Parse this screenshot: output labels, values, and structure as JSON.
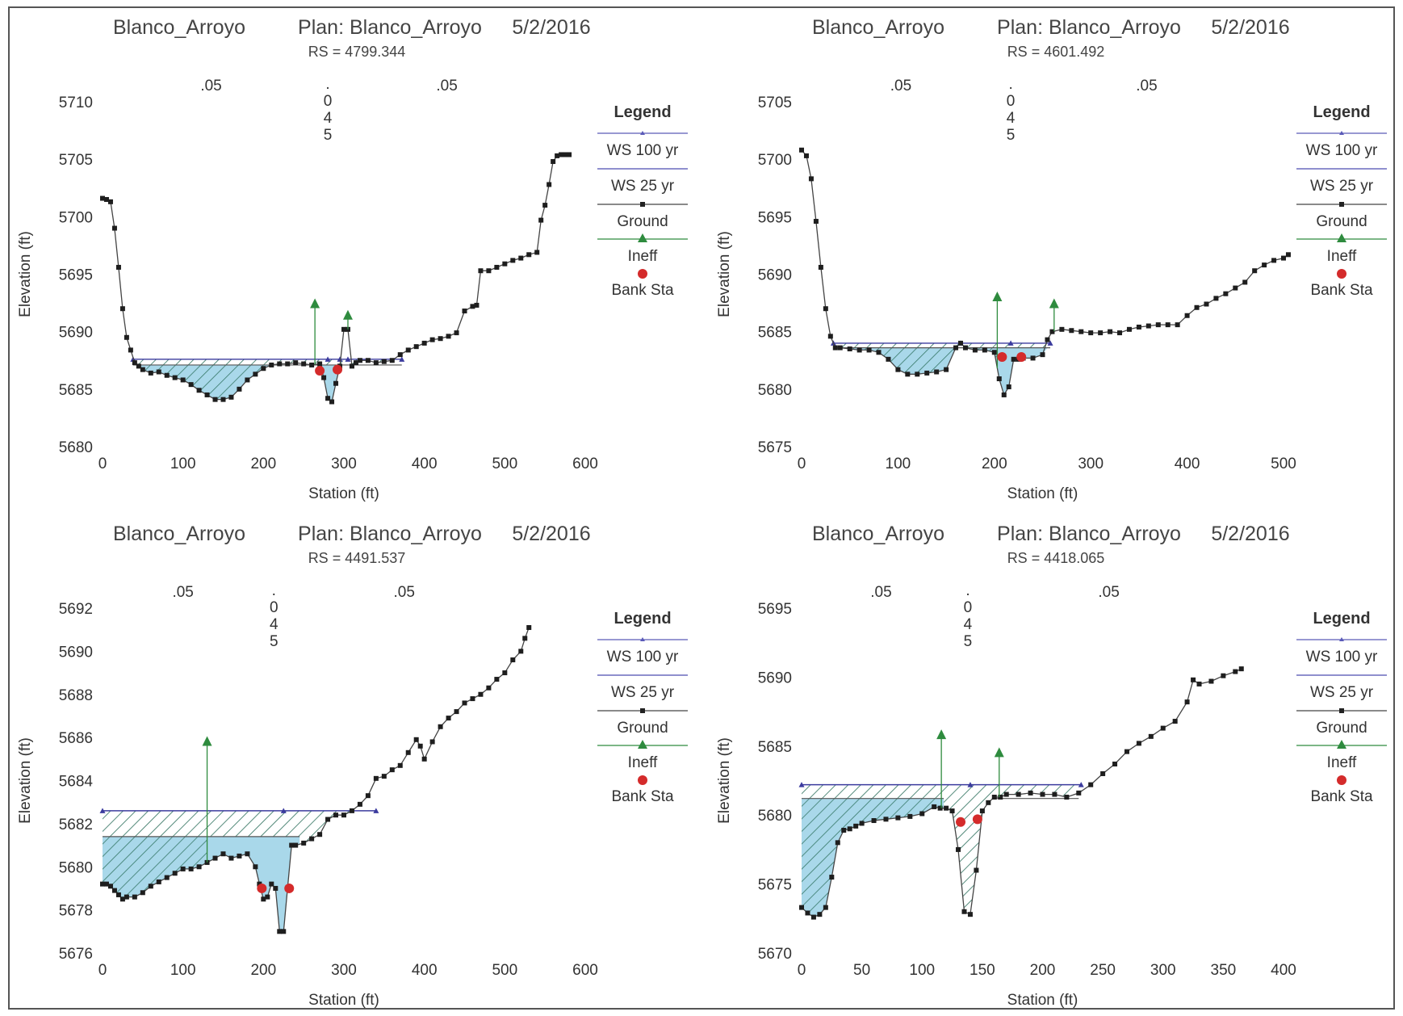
{
  "chart_data": [
    {
      "type": "line",
      "header": {
        "project": "Blanco_Arroyo",
        "plan": "Plan: Blanco_Arroyo",
        "date": "5/2/2016"
      },
      "title": "RS = 4799.344",
      "xlabel": "Station (ft)",
      "ylabel": "Elevation (ft)",
      "xlim": [
        0,
        600
      ],
      "ylim": [
        5680,
        5710
      ],
      "xticks": [
        0,
        100,
        200,
        300,
        400,
        500,
        600
      ],
      "yticks": [
        5680,
        5685,
        5690,
        5695,
        5700,
        5705,
        5710
      ],
      "manning_n": [
        {
          "label": ".05",
          "x": 135
        },
        {
          "label": ".045",
          "x": 280
        },
        {
          "label": ".05",
          "x": 428
        }
      ],
      "series": [
        {
          "name": "WS 100 yr",
          "color": "#3b3b9e",
          "type": "water-surface",
          "elevation": 5687.6,
          "segments": [
            [
              38,
              372
            ]
          ],
          "markers": [
            38,
            280,
            295,
            305,
            372
          ]
        },
        {
          "name": "WS 25 yr",
          "color": "#222222",
          "type": "water-surface",
          "elevation": 5687.1,
          "segments": [
            [
              38,
              372
            ]
          ]
        },
        {
          "name": "Ground",
          "color": "#222222",
          "type": "ground",
          "x": [
            0,
            5,
            10,
            15,
            20,
            25,
            30,
            35,
            40,
            45,
            50,
            60,
            70,
            80,
            90,
            100,
            110,
            120,
            130,
            140,
            150,
            160,
            170,
            180,
            190,
            200,
            210,
            220,
            230,
            240,
            250,
            260,
            270,
            275,
            280,
            285,
            290,
            295,
            300,
            305,
            310,
            315,
            320,
            330,
            340,
            350,
            360,
            370,
            380,
            390,
            400,
            410,
            420,
            430,
            440,
            450,
            460,
            465,
            470,
            480,
            490,
            500,
            510,
            520,
            530,
            540,
            545,
            550,
            555,
            560,
            565,
            570,
            575,
            580
          ],
          "y": [
            5701.6,
            5701.5,
            5701.3,
            5699,
            5695.6,
            5692,
            5689.5,
            5688.4,
            5687.3,
            5687,
            5686.7,
            5686.4,
            5686.5,
            5686.2,
            5686,
            5685.8,
            5685.4,
            5684.9,
            5684.5,
            5684.1,
            5684.1,
            5684.3,
            5685,
            5685.8,
            5686.3,
            5686.8,
            5687.1,
            5687.2,
            5687.2,
            5687.3,
            5687.2,
            5687.1,
            5687.2,
            5686,
            5684.2,
            5683.9,
            5685.5,
            5687,
            5690.2,
            5690.2,
            5687,
            5687.3,
            5687.5,
            5687.5,
            5687.3,
            5687.4,
            5687.5,
            5688,
            5688.4,
            5688.7,
            5689,
            5689.3,
            5689.4,
            5689.6,
            5689.9,
            5691.8,
            5692.2,
            5692.3,
            5695.3,
            5695.3,
            5695.6,
            5695.9,
            5696.2,
            5696.4,
            5696.7,
            5696.9,
            5699.7,
            5701,
            5702.8,
            5704.8,
            5705.3,
            5705.4,
            5705.4,
            5705.4
          ]
        },
        {
          "name": "Ineff",
          "color": "#2e8b3e",
          "type": "ineffective",
          "stations": [
            264,
            305
          ],
          "elevations": [
            5692.4,
            5691.4
          ]
        },
        {
          "name": "Bank Sta",
          "color": "#d42b2b",
          "type": "bank",
          "stations": [
            270,
            292
          ],
          "elevations": [
            5686.6,
            5686.7
          ]
        }
      ]
    },
    {
      "type": "line",
      "header": {
        "project": "Blanco_Arroyo",
        "plan": "Plan: Blanco_Arroyo",
        "date": "5/2/2016"
      },
      "title": "RS = 4601.492",
      "xlabel": "Station (ft)",
      "ylabel": "Elevation (ft)",
      "xlim": [
        0,
        500
      ],
      "ylim": [
        5675,
        5705
      ],
      "xticks": [
        0,
        100,
        200,
        300,
        400,
        500
      ],
      "yticks": [
        5675,
        5680,
        5685,
        5690,
        5695,
        5700,
        5705
      ],
      "manning_n": [
        {
          "label": ".05",
          "x": 103
        },
        {
          "label": ".045",
          "x": 217
        },
        {
          "label": ".05",
          "x": 358
        }
      ],
      "series": [
        {
          "name": "WS 100 yr",
          "color": "#3b3b9e",
          "type": "water-surface",
          "elevation": 5684.0,
          "segments": [
            [
              33,
              258
            ]
          ],
          "markers": [
            33,
            165,
            217,
            258
          ]
        },
        {
          "name": "WS 25 yr",
          "color": "#222222",
          "type": "water-surface",
          "elevation": 5683.6,
          "segments": [
            [
              33,
              258
            ]
          ]
        },
        {
          "name": "Ground",
          "color": "#222222",
          "type": "ground",
          "x": [
            0,
            5,
            10,
            15,
            20,
            25,
            30,
            35,
            40,
            50,
            60,
            70,
            80,
            90,
            100,
            110,
            120,
            130,
            140,
            150,
            160,
            165,
            170,
            180,
            190,
            200,
            205,
            210,
            215,
            220,
            225,
            230,
            240,
            250,
            255,
            260,
            270,
            280,
            290,
            300,
            310,
            320,
            330,
            340,
            350,
            360,
            370,
            380,
            390,
            400,
            410,
            420,
            430,
            440,
            450,
            460,
            470,
            480,
            490,
            500,
            505
          ],
          "y": [
            5700.8,
            5700.3,
            5698.3,
            5694.6,
            5690.6,
            5687,
            5684.6,
            5683.6,
            5683.6,
            5683.5,
            5683.4,
            5683.4,
            5683.2,
            5682.6,
            5681.7,
            5681.3,
            5681.3,
            5681.4,
            5681.5,
            5681.7,
            5683.6,
            5684.0,
            5683.6,
            5683.4,
            5683.4,
            5683.2,
            5680.9,
            5679.5,
            5680.2,
            5682.6,
            5682.6,
            5682.7,
            5682.7,
            5683.0,
            5684.3,
            5685.0,
            5685.2,
            5685.1,
            5685.0,
            5684.9,
            5684.9,
            5685.0,
            5684.9,
            5685.2,
            5685.4,
            5685.5,
            5685.6,
            5685.6,
            5685.6,
            5686.4,
            5687.1,
            5687.4,
            5687.9,
            5688.3,
            5688.8,
            5689.3,
            5690.3,
            5690.8,
            5691.2,
            5691.4,
            5691.7
          ]
        },
        {
          "name": "Ineff",
          "color": "#2e8b3e",
          "type": "ineffective",
          "stations": [
            203,
            262
          ],
          "elevations": [
            5688.0,
            5687.4
          ]
        },
        {
          "name": "Bank Sta",
          "color": "#d42b2b",
          "type": "bank",
          "stations": [
            208,
            228
          ],
          "elevations": [
            5682.8,
            5682.8
          ]
        }
      ]
    },
    {
      "type": "line",
      "header": {
        "project": "Blanco_Arroyo",
        "plan": "Plan: Blanco_Arroyo",
        "date": "5/2/2016"
      },
      "title": "RS = 4491.537",
      "xlabel": "Station (ft)",
      "ylabel": "Elevation (ft)",
      "xlim": [
        0,
        600
      ],
      "ylim": [
        5676,
        5692
      ],
      "xticks": [
        0,
        100,
        200,
        300,
        400,
        500,
        600
      ],
      "yticks": [
        5676,
        5678,
        5680,
        5682,
        5684,
        5686,
        5688,
        5690,
        5692
      ],
      "manning_n": [
        {
          "label": ".05",
          "x": 100
        },
        {
          "label": ".045",
          "x": 213
        },
        {
          "label": ".05",
          "x": 375
        }
      ],
      "series": [
        {
          "name": "WS 100 yr",
          "color": "#3b3b9e",
          "type": "water-surface",
          "elevation": 5682.6,
          "segments": [
            [
              0,
              340
            ]
          ],
          "markers": [
            0,
            225,
            340
          ]
        },
        {
          "name": "WS 25 yr",
          "color": "#222222",
          "type": "water-surface",
          "elevation": 5681.4,
          "segments": [
            [
              0,
              245
            ]
          ]
        },
        {
          "name": "Ground",
          "color": "#222222",
          "type": "ground",
          "x": [
            0,
            5,
            10,
            15,
            20,
            25,
            30,
            40,
            50,
            60,
            70,
            80,
            90,
            100,
            110,
            120,
            130,
            140,
            150,
            160,
            170,
            180,
            190,
            195,
            200,
            205,
            210,
            215,
            220,
            225,
            230,
            235,
            240,
            250,
            260,
            270,
            280,
            290,
            300,
            310,
            320,
            330,
            340,
            350,
            360,
            370,
            380,
            390,
            395,
            400,
            410,
            420,
            430,
            440,
            450,
            460,
            470,
            480,
            490,
            500,
            510,
            520,
            525,
            530
          ],
          "y": [
            5679.2,
            5679.2,
            5679.1,
            5678.9,
            5678.7,
            5678.5,
            5678.6,
            5678.6,
            5678.8,
            5679.1,
            5679.3,
            5679.5,
            5679.7,
            5679.9,
            5679.9,
            5680.0,
            5680.2,
            5680.4,
            5680.6,
            5680.4,
            5680.5,
            5680.6,
            5680.0,
            5679.2,
            5678.5,
            5678.6,
            5679.2,
            5679.0,
            5677.0,
            5677.0,
            5679.0,
            5681.0,
            5681.0,
            5681.1,
            5681.3,
            5681.5,
            5682.2,
            5682.4,
            5682.4,
            5682.6,
            5682.9,
            5683.3,
            5684.1,
            5684.2,
            5684.5,
            5684.7,
            5685.3,
            5685.9,
            5685.6,
            5685.0,
            5685.8,
            5686.5,
            5686.9,
            5687.2,
            5687.6,
            5687.8,
            5688.0,
            5688.3,
            5688.7,
            5689.0,
            5689.6,
            5690.0,
            5690.6,
            5691.1
          ]
        },
        {
          "name": "Ineff",
          "color": "#2e8b3e",
          "type": "ineffective",
          "stations": [
            130
          ],
          "elevations": [
            5685.8
          ]
        },
        {
          "name": "Bank Sta",
          "color": "#d42b2b",
          "type": "bank",
          "stations": [
            198,
            232
          ],
          "elevations": [
            5679.0,
            5679.0
          ]
        }
      ]
    },
    {
      "type": "line",
      "header": {
        "project": "Blanco_Arroyo",
        "plan": "Plan: Blanco_Arroyo",
        "date": "5/2/2016"
      },
      "title": "RS = 4418.065",
      "xlabel": "Station (ft)",
      "ylabel": "Elevation (ft)",
      "xlim": [
        0,
        400
      ],
      "ylim": [
        5670,
        5695
      ],
      "xticks": [
        0,
        50,
        100,
        150,
        200,
        250,
        300,
        350,
        400
      ],
      "yticks": [
        5670,
        5675,
        5680,
        5685,
        5690,
        5695
      ],
      "manning_n": [
        {
          "label": ".05",
          "x": 66
        },
        {
          "label": ".045",
          "x": 138
        },
        {
          "label": ".05",
          "x": 255
        }
      ],
      "series": [
        {
          "name": "WS 100 yr",
          "color": "#3b3b9e",
          "type": "water-surface",
          "elevation": 5682.2,
          "segments": [
            [
              0,
              232
            ]
          ],
          "markers": [
            0,
            140,
            232
          ]
        },
        {
          "name": "WS 25 yr",
          "color": "#222222",
          "type": "water-surface",
          "elevation": 5681.2,
          "segments": [
            [
              0,
              118
            ],
            [
              158,
              230
            ]
          ]
        },
        {
          "name": "Ground",
          "color": "#222222",
          "type": "ground",
          "x": [
            0,
            5,
            10,
            15,
            20,
            25,
            30,
            35,
            40,
            45,
            50,
            60,
            70,
            80,
            90,
            100,
            110,
            115,
            120,
            125,
            130,
            135,
            140,
            145,
            150,
            155,
            160,
            165,
            170,
            180,
            190,
            200,
            210,
            220,
            230,
            240,
            250,
            260,
            270,
            280,
            290,
            300,
            310,
            320,
            325,
            330,
            340,
            350,
            360,
            365
          ],
          "y": [
            5673.3,
            5672.9,
            5672.6,
            5672.8,
            5673.3,
            5675.5,
            5678.0,
            5678.9,
            5679.0,
            5679.2,
            5679.4,
            5679.6,
            5679.7,
            5679.8,
            5679.9,
            5680.1,
            5680.6,
            5680.5,
            5680.5,
            5680.3,
            5677.5,
            5673.0,
            5672.8,
            5676.0,
            5680.3,
            5680.9,
            5681.3,
            5681.3,
            5681.5,
            5681.5,
            5681.6,
            5681.5,
            5681.5,
            5681.3,
            5681.6,
            5682.2,
            5683.0,
            5683.7,
            5684.6,
            5685.2,
            5685.7,
            5686.3,
            5686.8,
            5688.2,
            5689.8,
            5689.5,
            5689.7,
            5690.1,
            5690.4,
            5690.6
          ]
        },
        {
          "name": "Ineff",
          "color": "#2e8b3e",
          "type": "ineffective",
          "stations": [
            116,
            164
          ],
          "elevations": [
            5685.8,
            5684.5
          ]
        },
        {
          "name": "Bank Sta",
          "color": "#d42b2b",
          "type": "bank",
          "stations": [
            132,
            146
          ],
          "elevations": [
            5679.5,
            5679.7
          ]
        }
      ]
    }
  ]
}
